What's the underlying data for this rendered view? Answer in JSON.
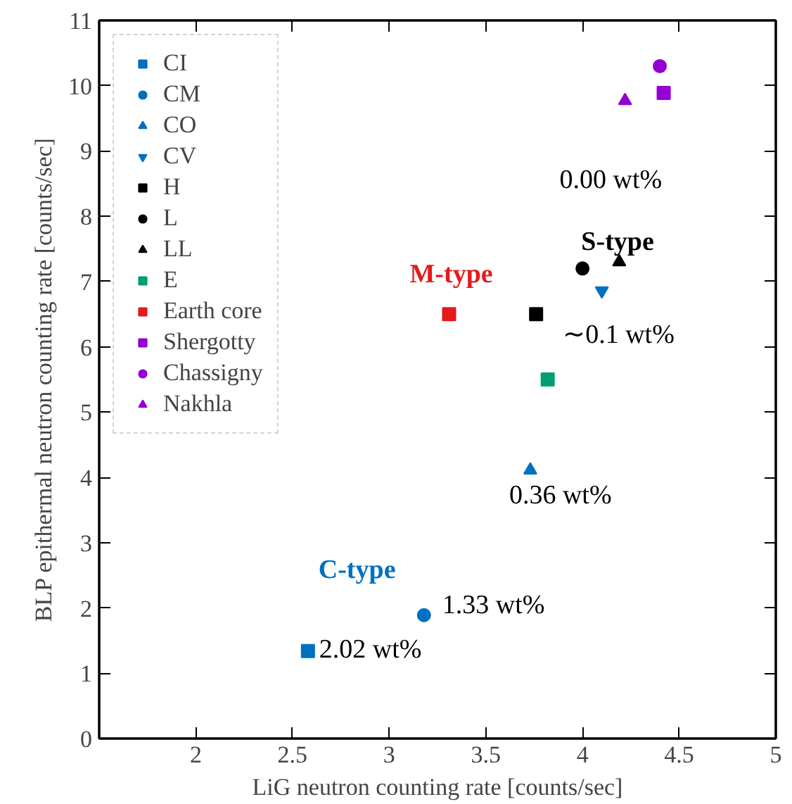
{
  "chart_data": {
    "type": "scatter",
    "xlabel": "LiG neutron counting rate [counts/sec]",
    "ylabel": "BLP epithermal neutron counting rate [counts/sec]",
    "xlim": [
      1.5,
      5
    ],
    "xticks": [
      2,
      2.5,
      3,
      3.5,
      4,
      4.5,
      5
    ],
    "ylim": [
      0,
      11
    ],
    "yticks": [
      0,
      1,
      2,
      3,
      4,
      5,
      6,
      7,
      8,
      9,
      10,
      11
    ],
    "grid": false,
    "legend": "top left",
    "series": [
      {
        "name": "CI",
        "color": "#0070c0",
        "marker": "square",
        "x": [
          2.58
        ],
        "values": [
          1.34
        ]
      },
      {
        "name": "CM",
        "color": "#0070c0",
        "marker": "circle",
        "x": [
          3.18
        ],
        "values": [
          1.89
        ]
      },
      {
        "name": "CO",
        "color": "#0070c0",
        "marker": "triangle",
        "x": [
          3.73
        ],
        "values": [
          4.11
        ]
      },
      {
        "name": "CV",
        "color": "#0070c0",
        "marker": "triangle_down",
        "x": [
          4.1
        ],
        "values": [
          6.86
        ]
      },
      {
        "name": "H",
        "color": "#000000",
        "marker": "square",
        "x": [
          3.76
        ],
        "values": [
          6.5
        ]
      },
      {
        "name": "L",
        "color": "#000000",
        "marker": "circle",
        "x": [
          4.0
        ],
        "values": [
          7.2
        ]
      },
      {
        "name": "LL",
        "color": "#000000",
        "marker": "triangle",
        "x": [
          4.19
        ],
        "values": [
          7.3
        ]
      },
      {
        "name": "E",
        "color": "#009e73",
        "marker": "square",
        "x": [
          3.82
        ],
        "values": [
          5.5
        ]
      },
      {
        "name": "Earth core",
        "color": "#e41a1c",
        "marker": "square",
        "x": [
          3.31
        ],
        "values": [
          6.5
        ]
      },
      {
        "name": "Shergotty",
        "color": "#9400d3",
        "marker": "square",
        "x": [
          4.42
        ],
        "values": [
          9.89
        ]
      },
      {
        "name": "Chassigny",
        "color": "#9400d3",
        "marker": "circle",
        "x": [
          4.4
        ],
        "values": [
          10.3
        ]
      },
      {
        "name": "Nakhla",
        "color": "#9400d3",
        "marker": "triangle",
        "x": [
          4.22
        ],
        "values": [
          9.77
        ]
      }
    ],
    "annotations": [
      {
        "text": "M-type",
        "x": 3.31,
        "y": 6.5
      },
      {
        "text": "S-type",
        "x": 4.19,
        "y": 7.3
      },
      {
        "text": "C-type",
        "x": 3.18,
        "y": 1.89
      },
      {
        "text": "0.00 wt%",
        "x": 4.42,
        "y": 9.89
      },
      {
        "text": "∼0.1 wt%",
        "x": 3.76,
        "y": 6.5
      },
      {
        "text": "0.36 wt%",
        "x": 3.73,
        "y": 4.11
      },
      {
        "text": "1.33 wt%",
        "x": 3.18,
        "y": 1.89
      },
      {
        "text": "2.02 wt%",
        "x": 2.58,
        "y": 1.34
      }
    ]
  }
}
